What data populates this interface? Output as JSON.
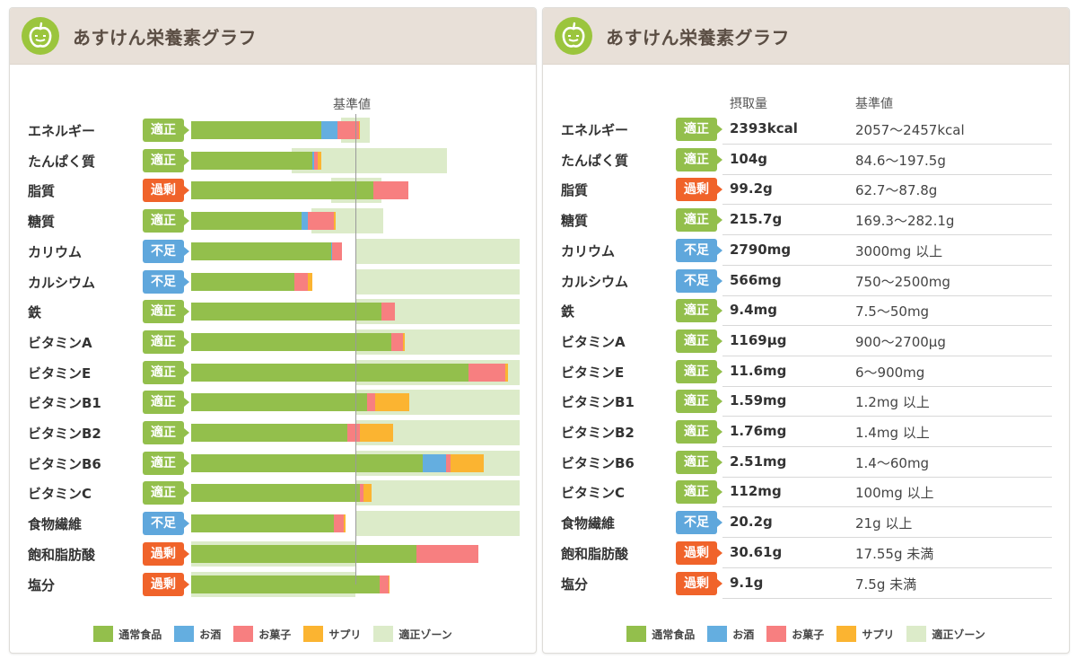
{
  "app": {
    "title": "あすけん栄養素グラフ"
  },
  "colors": {
    "normal": "#93bf4c",
    "alcohol": "#64aee0",
    "snack": "#f77f80",
    "supplement": "#fbb431",
    "zone": "#dcebc9",
    "ok": "#93bf4c",
    "excess": "#f0632a",
    "lack": "#5fa7dc"
  },
  "legend": [
    "通常食品",
    "お酒",
    "お菓子",
    "サプリ",
    "適正ゾーン"
  ],
  "table": {
    "col_intake": "摂取量",
    "col_reference": "基準値"
  },
  "nutrients": [
    {
      "name": "エネルギー",
      "status": "適正",
      "status_type": "ok",
      "intake": "2393kcal",
      "reference": "2057〜2457kcal"
    },
    {
      "name": "たんぱく質",
      "status": "適正",
      "status_type": "ok",
      "intake": "104g",
      "reference": "84.6〜197.5g"
    },
    {
      "name": "脂質",
      "status": "過剰",
      "status_type": "excess",
      "intake": "99.2g",
      "reference": "62.7〜87.8g"
    },
    {
      "name": "糖質",
      "status": "適正",
      "status_type": "ok",
      "intake": "215.7g",
      "reference": "169.3〜282.1g"
    },
    {
      "name": "カリウム",
      "status": "不足",
      "status_type": "lack",
      "intake": "2790mg",
      "reference": "3000mg 以上"
    },
    {
      "name": "カルシウム",
      "status": "不足",
      "status_type": "lack",
      "intake": "566mg",
      "reference": "750〜2500mg"
    },
    {
      "name": "鉄",
      "status": "適正",
      "status_type": "ok",
      "intake": "9.4mg",
      "reference": "7.5〜50mg"
    },
    {
      "name": "ビタミンA",
      "status": "適正",
      "status_type": "ok",
      "intake": "1169µg",
      "reference": "900〜2700µg"
    },
    {
      "name": "ビタミンE",
      "status": "適正",
      "status_type": "ok",
      "intake": "11.6mg",
      "reference": "6〜900mg"
    },
    {
      "name": "ビタミンB1",
      "status": "適正",
      "status_type": "ok",
      "intake": "1.59mg",
      "reference": "1.2mg 以上"
    },
    {
      "name": "ビタミンB2",
      "status": "適正",
      "status_type": "ok",
      "intake": "1.76mg",
      "reference": "1.4mg 以上"
    },
    {
      "name": "ビタミンB6",
      "status": "適正",
      "status_type": "ok",
      "intake": "2.51mg",
      "reference": "1.4〜60mg"
    },
    {
      "name": "ビタミンC",
      "status": "適正",
      "status_type": "ok",
      "intake": "112mg",
      "reference": "100mg 以上"
    },
    {
      "name": "食物繊維",
      "status": "不足",
      "status_type": "lack",
      "intake": "20.2g",
      "reference": "21g 以上"
    },
    {
      "name": "飽和脂肪酸",
      "status": "過剰",
      "status_type": "excess",
      "intake": "30.61g",
      "reference": "17.55g 未満"
    },
    {
      "name": "塩分",
      "status": "過剰",
      "status_type": "excess",
      "intake": "9.1g",
      "reference": "7.5g 未満"
    }
  ],
  "chart_data": {
    "type": "bar",
    "orientation": "horizontal",
    "stacked": true,
    "title": "あすけん栄養素グラフ",
    "reference_label": "基準値",
    "reference_value": 100,
    "unit": "% of reference",
    "xlim": [
      0,
      200
    ],
    "categories": [
      "エネルギー",
      "たんぱく質",
      "脂質",
      "糖質",
      "カリウム",
      "カルシウム",
      "鉄",
      "ビタミンA",
      "ビタミンE",
      "ビタミンB1",
      "ビタミンB2",
      "ビタミンB6",
      "ビタミンC",
      "食物繊維",
      "飽和脂肪酸",
      "塩分"
    ],
    "series": [
      {
        "name": "通常食品",
        "color": "#93bf4c",
        "values": [
          79,
          74,
          111,
          67,
          85,
          63,
          116,
          122,
          169,
          107,
          95,
          141,
          103,
          87,
          137,
          115
        ]
      },
      {
        "name": "お酒",
        "color": "#64aee0",
        "values": [
          10,
          1,
          0,
          4,
          1,
          0,
          0,
          0,
          0,
          0,
          0,
          14,
          0,
          0,
          0,
          0
        ]
      },
      {
        "name": "お菓子",
        "color": "#f77f80",
        "values": [
          13,
          2,
          21,
          16,
          6,
          8,
          8,
          7,
          22,
          5,
          8,
          3,
          2,
          6,
          38,
          5
        ]
      },
      {
        "name": "サプリ",
        "color": "#fbb431",
        "values": [
          1,
          2,
          0,
          1,
          0,
          3,
          0,
          1,
          2,
          21,
          20,
          20,
          5,
          1,
          0,
          1
        ]
      },
      {
        "name": "適正ゾーン",
        "color": "#dcebc9",
        "ranges": [
          [
            91,
            109
          ],
          [
            61,
            156
          ],
          [
            85,
            116
          ],
          [
            73,
            117
          ],
          [
            100,
            200
          ],
          [
            100,
            200
          ],
          [
            100,
            200
          ],
          [
            100,
            200
          ],
          [
            100,
            200
          ],
          [
            100,
            200
          ],
          [
            100,
            200
          ],
          [
            100,
            200
          ],
          [
            100,
            200
          ],
          [
            100,
            200
          ],
          [
            0,
            100
          ],
          [
            0,
            100
          ]
        ]
      }
    ]
  }
}
